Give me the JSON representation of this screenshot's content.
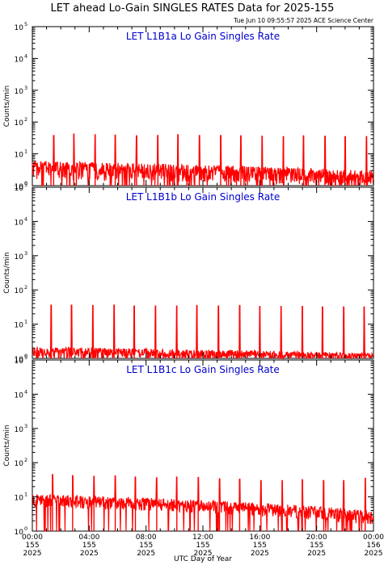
{
  "header": {
    "title": "LET ahead Lo-Gain SINGLES RATES Data for 2025-155",
    "timestamp": "Tue Jun 10 09:55:57 2025 ACE Science Center"
  },
  "colors": {
    "series": "#ff0000",
    "panel_title": "#0000cc",
    "axes": "#000000"
  },
  "chart_data": [
    {
      "type": "line",
      "title": "LET L1B1a Lo Gain Singles Rate",
      "ylabel": "Counts/min",
      "xlabel": "",
      "ylim": [
        1,
        100000
      ],
      "yscale": "log",
      "yticks": [
        {
          "value": 1,
          "base": "10",
          "exp": "0"
        },
        {
          "value": 10,
          "base": "10",
          "exp": "1"
        },
        {
          "value": 100,
          "base": "10",
          "exp": "2"
        },
        {
          "value": 1000,
          "base": "10",
          "exp": "3"
        },
        {
          "value": 10000,
          "base": "10",
          "exp": "4"
        },
        {
          "value": 100000,
          "base": "10",
          "exp": "5"
        }
      ],
      "xlim": [
        "00:00",
        "24:00"
      ],
      "baseline": {
        "min": 1.5,
        "max": 6.0
      },
      "late_baseline": {
        "min": 1.0,
        "max": 3.0
      },
      "spikes": [
        {
          "time": "01:30",
          "counts": 38
        },
        {
          "time": "02:55",
          "counts": 42
        },
        {
          "time": "04:25",
          "counts": 40
        },
        {
          "time": "05:50",
          "counts": 39
        },
        {
          "time": "07:20",
          "counts": 37
        },
        {
          "time": "08:50",
          "counts": 38
        },
        {
          "time": "10:15",
          "counts": 40
        },
        {
          "time": "11:45",
          "counts": 38
        },
        {
          "time": "13:15",
          "counts": 38
        },
        {
          "time": "14:40",
          "counts": 37
        },
        {
          "time": "16:10",
          "counts": 36
        },
        {
          "time": "17:40",
          "counts": 35
        },
        {
          "time": "19:05",
          "counts": 37
        },
        {
          "time": "20:35",
          "counts": 36
        },
        {
          "time": "22:00",
          "counts": 35
        },
        {
          "time": "23:30",
          "counts": 35
        }
      ]
    },
    {
      "type": "line",
      "title": "LET L1B1b Lo Gain Singles Rate",
      "ylabel": "Counts/min",
      "xlabel": "",
      "ylim": [
        1,
        100000
      ],
      "yscale": "log",
      "yticks": [
        {
          "value": 1,
          "base": "10",
          "exp": "0"
        },
        {
          "value": 10,
          "base": "10",
          "exp": "1"
        },
        {
          "value": 100,
          "base": "10",
          "exp": "2"
        },
        {
          "value": 1000,
          "base": "10",
          "exp": "3"
        },
        {
          "value": 10000,
          "base": "10",
          "exp": "4"
        },
        {
          "value": 100000,
          "base": "10",
          "exp": "5"
        }
      ],
      "xlim": [
        "00:00",
        "24:00"
      ],
      "baseline": {
        "min": 1.0,
        "max": 2.2
      },
      "late_baseline": {
        "min": 1.0,
        "max": 1.4
      },
      "spikes": [
        {
          "time": "01:20",
          "counts": 36
        },
        {
          "time": "02:45",
          "counts": 36
        },
        {
          "time": "04:15",
          "counts": 35
        },
        {
          "time": "05:45",
          "counts": 36
        },
        {
          "time": "07:10",
          "counts": 34
        },
        {
          "time": "08:40",
          "counts": 34
        },
        {
          "time": "10:10",
          "counts": 34
        },
        {
          "time": "11:35",
          "counts": 35
        },
        {
          "time": "13:05",
          "counts": 34
        },
        {
          "time": "14:35",
          "counts": 35
        },
        {
          "time": "16:00",
          "counts": 33
        },
        {
          "time": "17:30",
          "counts": 33
        },
        {
          "time": "19:00",
          "counts": 33
        },
        {
          "time": "20:25",
          "counts": 32
        },
        {
          "time": "21:55",
          "counts": 32
        },
        {
          "time": "23:20",
          "counts": 32
        }
      ]
    },
    {
      "type": "line",
      "title": "LET L1B1c Lo Gain Singles Rate",
      "ylabel": "Counts/min",
      "xlabel": "UTC Day of Year",
      "ylim": [
        1,
        100000
      ],
      "yscale": "log",
      "yticks": [
        {
          "value": 1,
          "base": "10",
          "exp": "0"
        },
        {
          "value": 10,
          "base": "10",
          "exp": "1"
        },
        {
          "value": 100,
          "base": "10",
          "exp": "2"
        },
        {
          "value": 1000,
          "base": "10",
          "exp": "3"
        },
        {
          "value": 10000,
          "base": "10",
          "exp": "4"
        },
        {
          "value": 100000,
          "base": "10",
          "exp": "5"
        }
      ],
      "xlim": [
        "00:00",
        "24:00"
      ],
      "xticks": [
        {
          "time": "00:00",
          "doy": "155",
          "year": "2025"
        },
        {
          "time": "04:00",
          "doy": "155",
          "year": "2025"
        },
        {
          "time": "08:00",
          "doy": "155",
          "year": "2025"
        },
        {
          "time": "12:00",
          "doy": "155",
          "year": "2025"
        },
        {
          "time": "16:00",
          "doy": "155",
          "year": "2025"
        },
        {
          "time": "20:00",
          "doy": "155",
          "year": "2025"
        },
        {
          "time": "00:00",
          "doy": "156",
          "year": "2025"
        }
      ],
      "baseline": {
        "min": 5.0,
        "max": 12.0
      },
      "late_baseline": {
        "min": 1.5,
        "max": 4.0
      },
      "spikes": [
        {
          "time": "01:25",
          "counts": 45
        },
        {
          "time": "02:50",
          "counts": 42
        },
        {
          "time": "04:20",
          "counts": 40
        },
        {
          "time": "05:50",
          "counts": 41
        },
        {
          "time": "07:15",
          "counts": 38
        },
        {
          "time": "08:45",
          "counts": 36
        },
        {
          "time": "10:10",
          "counts": 38
        },
        {
          "time": "11:40",
          "counts": 37
        },
        {
          "time": "13:10",
          "counts": 34
        },
        {
          "time": "14:35",
          "counts": 33
        },
        {
          "time": "16:05",
          "counts": 30
        },
        {
          "time": "17:35",
          "counts": 30
        },
        {
          "time": "19:00",
          "counts": 32
        },
        {
          "time": "20:30",
          "counts": 30
        },
        {
          "time": "21:55",
          "counts": 30
        },
        {
          "time": "23:25",
          "counts": 35
        }
      ]
    }
  ]
}
